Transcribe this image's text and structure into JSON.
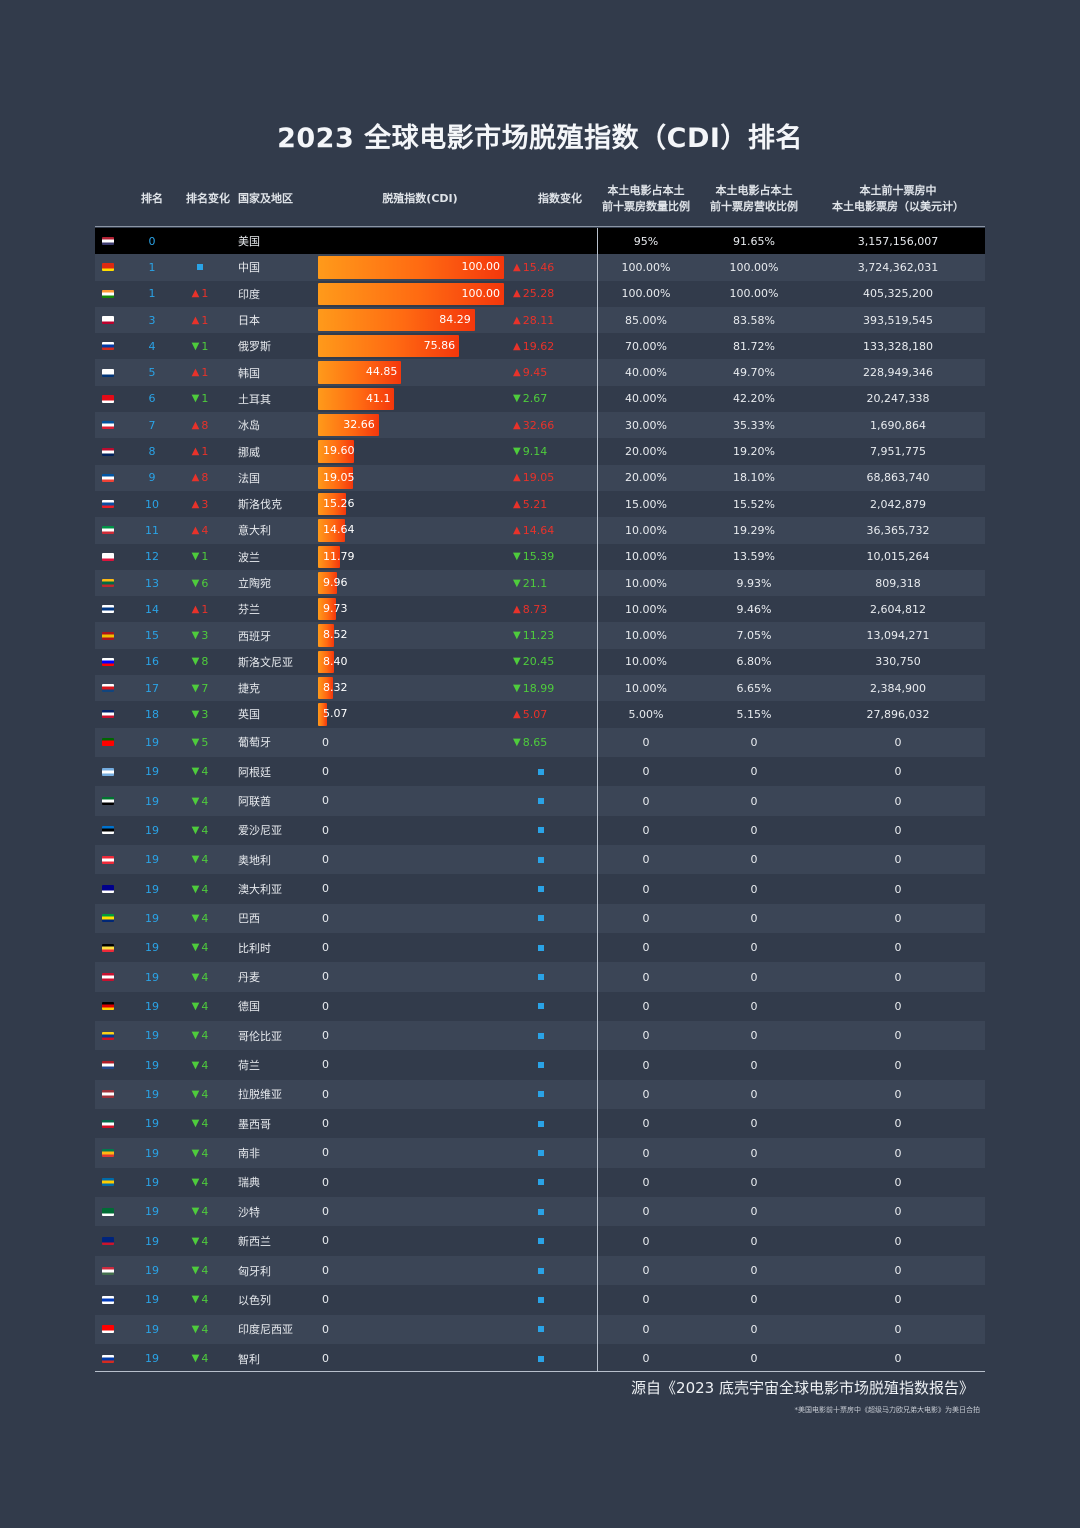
{
  "title": "2023 全球电影市场脱殖指数（CDI）排名",
  "headers": {
    "rank": "排名",
    "rank_change": "排名变化",
    "country": "国家及地区",
    "cdi": "脱殖指数(CDI)",
    "index_change": "指数变化",
    "count_ratio": "本土电影占本土\n前十票房数量比例",
    "revenue_ratio": "本土电影占本土\n前十票房营收比例",
    "local_box": "本土前十票房中\n本土电影票房（以美元计）"
  },
  "colors": {
    "background": "#323b4b",
    "row_alt": "#3b4556",
    "highlight_row": "#000000",
    "bar": "#ff6a12",
    "up": "#e8322a",
    "down": "#4ecc3c",
    "rank": "#2aa3e6"
  },
  "chart_data": {
    "type": "table",
    "title": "2023 全球电影市场脱殖指数（CDI）排名",
    "columns": [
      "排名",
      "排名变化",
      "国家及地区",
      "脱殖指数(CDI)",
      "指数变化",
      "本土电影占本土前十票房数量比例",
      "本土电影占本土前十票房营收比例",
      "本土前十票房中本土电影票房（以美元计）"
    ],
    "cdi_range": [
      0,
      100
    ],
    "rows": [
      {
        "rank": "0",
        "rc_dir": "",
        "rc_val": "",
        "country": "美国",
        "flag": "us",
        "cdi": null,
        "cdi_text": "",
        "ic_dir": "",
        "ic_val": "",
        "count": "95%",
        "revenue": "91.65%",
        "box": "3,157,156,007",
        "highlight": true
      },
      {
        "rank": "1",
        "rc_dir": "same",
        "rc_val": "",
        "country": "中国",
        "flag": "cn",
        "cdi": 100,
        "cdi_text": "100.00",
        "ic_dir": "up",
        "ic_val": "15.46",
        "count": "100.00%",
        "revenue": "100.00%",
        "box": "3,724,362,031"
      },
      {
        "rank": "1",
        "rc_dir": "up",
        "rc_val": "1",
        "country": "印度",
        "flag": "in",
        "cdi": 100,
        "cdi_text": "100.00",
        "ic_dir": "up",
        "ic_val": "25.28",
        "count": "100.00%",
        "revenue": "100.00%",
        "box": "405,325,200"
      },
      {
        "rank": "3",
        "rc_dir": "up",
        "rc_val": "1",
        "country": "日本",
        "flag": "jp",
        "cdi": 84.29,
        "cdi_text": "84.29",
        "ic_dir": "up",
        "ic_val": "28.11",
        "count": "85.00%",
        "revenue": "83.58%",
        "box": "393,519,545"
      },
      {
        "rank": "4",
        "rc_dir": "down",
        "rc_val": "1",
        "country": "俄罗斯",
        "flag": "ru",
        "cdi": 75.86,
        "cdi_text": "75.86",
        "ic_dir": "up",
        "ic_val": "19.62",
        "count": "70.00%",
        "revenue": "81.72%",
        "box": "133,328,180"
      },
      {
        "rank": "5",
        "rc_dir": "up",
        "rc_val": "1",
        "country": "韩国",
        "flag": "kr",
        "cdi": 44.85,
        "cdi_text": "44.85",
        "ic_dir": "up",
        "ic_val": "9.45",
        "count": "40.00%",
        "revenue": "49.70%",
        "box": "228,949,346"
      },
      {
        "rank": "6",
        "rc_dir": "down",
        "rc_val": "1",
        "country": "土耳其",
        "flag": "tr",
        "cdi": 41.1,
        "cdi_text": "41.1",
        "ic_dir": "down",
        "ic_val": "2.67",
        "count": "40.00%",
        "revenue": "42.20%",
        "box": "20,247,338"
      },
      {
        "rank": "7",
        "rc_dir": "up",
        "rc_val": "8",
        "country": "冰岛",
        "flag": "is",
        "cdi": 32.66,
        "cdi_text": "32.66",
        "ic_dir": "up",
        "ic_val": "32.66",
        "count": "30.00%",
        "revenue": "35.33%",
        "box": "1,690,864"
      },
      {
        "rank": "8",
        "rc_dir": "up",
        "rc_val": "1",
        "country": "挪威",
        "flag": "no",
        "cdi": 19.6,
        "cdi_text": "19.60",
        "ic_dir": "down",
        "ic_val": "9.14",
        "count": "20.00%",
        "revenue": "19.20%",
        "box": "7,951,775"
      },
      {
        "rank": "9",
        "rc_dir": "up",
        "rc_val": "8",
        "country": "法国",
        "flag": "fr",
        "cdi": 19.05,
        "cdi_text": "19.05",
        "ic_dir": "up",
        "ic_val": "19.05",
        "count": "20.00%",
        "revenue": "18.10%",
        "box": "68,863,740"
      },
      {
        "rank": "10",
        "rc_dir": "up",
        "rc_val": "3",
        "country": "斯洛伐克",
        "flag": "sk",
        "cdi": 15.26,
        "cdi_text": "15.26",
        "ic_dir": "up",
        "ic_val": "5.21",
        "count": "15.00%",
        "revenue": "15.52%",
        "box": "2,042,879"
      },
      {
        "rank": "11",
        "rc_dir": "up",
        "rc_val": "4",
        "country": "意大利",
        "flag": "it",
        "cdi": 14.64,
        "cdi_text": "14.64",
        "ic_dir": "up",
        "ic_val": "14.64",
        "count": "10.00%",
        "revenue": "19.29%",
        "box": "36,365,732"
      },
      {
        "rank": "12",
        "rc_dir": "down",
        "rc_val": "1",
        "country": "波兰",
        "flag": "pl",
        "cdi": 11.79,
        "cdi_text": "11.79",
        "ic_dir": "down",
        "ic_val": "15.39",
        "count": "10.00%",
        "revenue": "13.59%",
        "box": "10,015,264"
      },
      {
        "rank": "13",
        "rc_dir": "down",
        "rc_val": "6",
        "country": "立陶宛",
        "flag": "lt",
        "cdi": 9.96,
        "cdi_text": "9.96",
        "ic_dir": "down",
        "ic_val": "21.1",
        "count": "10.00%",
        "revenue": "9.93%",
        "box": "809,318"
      },
      {
        "rank": "14",
        "rc_dir": "up",
        "rc_val": "1",
        "country": "芬兰",
        "flag": "fi",
        "cdi": 9.73,
        "cdi_text": "9.73",
        "ic_dir": "up",
        "ic_val": "8.73",
        "count": "10.00%",
        "revenue": "9.46%",
        "box": "2,604,812"
      },
      {
        "rank": "15",
        "rc_dir": "down",
        "rc_val": "3",
        "country": "西班牙",
        "flag": "es",
        "cdi": 8.52,
        "cdi_text": "8.52",
        "ic_dir": "down",
        "ic_val": "11.23",
        "count": "10.00%",
        "revenue": "7.05%",
        "box": "13,094,271"
      },
      {
        "rank": "16",
        "rc_dir": "down",
        "rc_val": "8",
        "country": "斯洛文尼亚",
        "flag": "si",
        "cdi": 8.4,
        "cdi_text": "8.40",
        "ic_dir": "down",
        "ic_val": "20.45",
        "count": "10.00%",
        "revenue": "6.80%",
        "box": "330,750"
      },
      {
        "rank": "17",
        "rc_dir": "down",
        "rc_val": "7",
        "country": "捷克",
        "flag": "cz",
        "cdi": 8.32,
        "cdi_text": "8.32",
        "ic_dir": "down",
        "ic_val": "18.99",
        "count": "10.00%",
        "revenue": "6.65%",
        "box": "2,384,900"
      },
      {
        "rank": "18",
        "rc_dir": "down",
        "rc_val": "3",
        "country": "英国",
        "flag": "gb",
        "cdi": 5.07,
        "cdi_text": "5.07",
        "ic_dir": "up",
        "ic_val": "5.07",
        "count": "5.00%",
        "revenue": "5.15%",
        "box": "27,896,032"
      },
      {
        "rank": "19",
        "rc_dir": "down",
        "rc_val": "5",
        "country": "葡萄牙",
        "flag": "pt",
        "cdi": 0,
        "cdi_text": "0",
        "ic_dir": "down",
        "ic_val": "8.65",
        "count": "0",
        "revenue": "0",
        "box": "0"
      },
      {
        "rank": "19",
        "rc_dir": "down",
        "rc_val": "4",
        "country": "阿根廷",
        "flag": "ar",
        "cdi": 0,
        "cdi_text": "0",
        "ic_dir": "same",
        "ic_val": "",
        "count": "0",
        "revenue": "0",
        "box": "0"
      },
      {
        "rank": "19",
        "rc_dir": "down",
        "rc_val": "4",
        "country": "阿联酋",
        "flag": "ae",
        "cdi": 0,
        "cdi_text": "0",
        "ic_dir": "same",
        "ic_val": "",
        "count": "0",
        "revenue": "0",
        "box": "0"
      },
      {
        "rank": "19",
        "rc_dir": "down",
        "rc_val": "4",
        "country": "爱沙尼亚",
        "flag": "ee",
        "cdi": 0,
        "cdi_text": "0",
        "ic_dir": "same",
        "ic_val": "",
        "count": "0",
        "revenue": "0",
        "box": "0"
      },
      {
        "rank": "19",
        "rc_dir": "down",
        "rc_val": "4",
        "country": "奥地利",
        "flag": "at",
        "cdi": 0,
        "cdi_text": "0",
        "ic_dir": "same",
        "ic_val": "",
        "count": "0",
        "revenue": "0",
        "box": "0"
      },
      {
        "rank": "19",
        "rc_dir": "down",
        "rc_val": "4",
        "country": "澳大利亚",
        "flag": "au",
        "cdi": 0,
        "cdi_text": "0",
        "ic_dir": "same",
        "ic_val": "",
        "count": "0",
        "revenue": "0",
        "box": "0"
      },
      {
        "rank": "19",
        "rc_dir": "down",
        "rc_val": "4",
        "country": "巴西",
        "flag": "br",
        "cdi": 0,
        "cdi_text": "0",
        "ic_dir": "same",
        "ic_val": "",
        "count": "0",
        "revenue": "0",
        "box": "0"
      },
      {
        "rank": "19",
        "rc_dir": "down",
        "rc_val": "4",
        "country": "比利时",
        "flag": "be",
        "cdi": 0,
        "cdi_text": "0",
        "ic_dir": "same",
        "ic_val": "",
        "count": "0",
        "revenue": "0",
        "box": "0"
      },
      {
        "rank": "19",
        "rc_dir": "down",
        "rc_val": "4",
        "country": "丹麦",
        "flag": "dk",
        "cdi": 0,
        "cdi_text": "0",
        "ic_dir": "same",
        "ic_val": "",
        "count": "0",
        "revenue": "0",
        "box": "0"
      },
      {
        "rank": "19",
        "rc_dir": "down",
        "rc_val": "4",
        "country": "德国",
        "flag": "de",
        "cdi": 0,
        "cdi_text": "0",
        "ic_dir": "same",
        "ic_val": "",
        "count": "0",
        "revenue": "0",
        "box": "0"
      },
      {
        "rank": "19",
        "rc_dir": "down",
        "rc_val": "4",
        "country": "哥伦比亚",
        "flag": "co",
        "cdi": 0,
        "cdi_text": "0",
        "ic_dir": "same",
        "ic_val": "",
        "count": "0",
        "revenue": "0",
        "box": "0"
      },
      {
        "rank": "19",
        "rc_dir": "down",
        "rc_val": "4",
        "country": "荷兰",
        "flag": "nl",
        "cdi": 0,
        "cdi_text": "0",
        "ic_dir": "same",
        "ic_val": "",
        "count": "0",
        "revenue": "0",
        "box": "0"
      },
      {
        "rank": "19",
        "rc_dir": "down",
        "rc_val": "4",
        "country": "拉脱维亚",
        "flag": "lv",
        "cdi": 0,
        "cdi_text": "0",
        "ic_dir": "same",
        "ic_val": "",
        "count": "0",
        "revenue": "0",
        "box": "0"
      },
      {
        "rank": "19",
        "rc_dir": "down",
        "rc_val": "4",
        "country": "墨西哥",
        "flag": "mx",
        "cdi": 0,
        "cdi_text": "0",
        "ic_dir": "same",
        "ic_val": "",
        "count": "0",
        "revenue": "0",
        "box": "0"
      },
      {
        "rank": "19",
        "rc_dir": "down",
        "rc_val": "4",
        "country": "南非",
        "flag": "za",
        "cdi": 0,
        "cdi_text": "0",
        "ic_dir": "same",
        "ic_val": "",
        "count": "0",
        "revenue": "0",
        "box": "0"
      },
      {
        "rank": "19",
        "rc_dir": "down",
        "rc_val": "4",
        "country": "瑞典",
        "flag": "se",
        "cdi": 0,
        "cdi_text": "0",
        "ic_dir": "same",
        "ic_val": "",
        "count": "0",
        "revenue": "0",
        "box": "0"
      },
      {
        "rank": "19",
        "rc_dir": "down",
        "rc_val": "4",
        "country": "沙特",
        "flag": "sa",
        "cdi": 0,
        "cdi_text": "0",
        "ic_dir": "same",
        "ic_val": "",
        "count": "0",
        "revenue": "0",
        "box": "0"
      },
      {
        "rank": "19",
        "rc_dir": "down",
        "rc_val": "4",
        "country": "新西兰",
        "flag": "nz",
        "cdi": 0,
        "cdi_text": "0",
        "ic_dir": "same",
        "ic_val": "",
        "count": "0",
        "revenue": "0",
        "box": "0"
      },
      {
        "rank": "19",
        "rc_dir": "down",
        "rc_val": "4",
        "country": "匈牙利",
        "flag": "hu",
        "cdi": 0,
        "cdi_text": "0",
        "ic_dir": "same",
        "ic_val": "",
        "count": "0",
        "revenue": "0",
        "box": "0"
      },
      {
        "rank": "19",
        "rc_dir": "down",
        "rc_val": "4",
        "country": "以色列",
        "flag": "il",
        "cdi": 0,
        "cdi_text": "0",
        "ic_dir": "same",
        "ic_val": "",
        "count": "0",
        "revenue": "0",
        "box": "0"
      },
      {
        "rank": "19",
        "rc_dir": "down",
        "rc_val": "4",
        "country": "印度尼西亚",
        "flag": "id",
        "cdi": 0,
        "cdi_text": "0",
        "ic_dir": "same",
        "ic_val": "",
        "count": "0",
        "revenue": "0",
        "box": "0"
      },
      {
        "rank": "19",
        "rc_dir": "down",
        "rc_val": "4",
        "country": "智利",
        "flag": "cl",
        "cdi": 0,
        "cdi_text": "0",
        "ic_dir": "same",
        "ic_val": "",
        "count": "0",
        "revenue": "0",
        "box": "0"
      }
    ]
  },
  "source": "源自《2023 底壳宇宙全球电影市场脱殖指数报告》",
  "note": "*美国电影前十票房中《超级马力欧兄弟大电影》为美日合拍"
}
